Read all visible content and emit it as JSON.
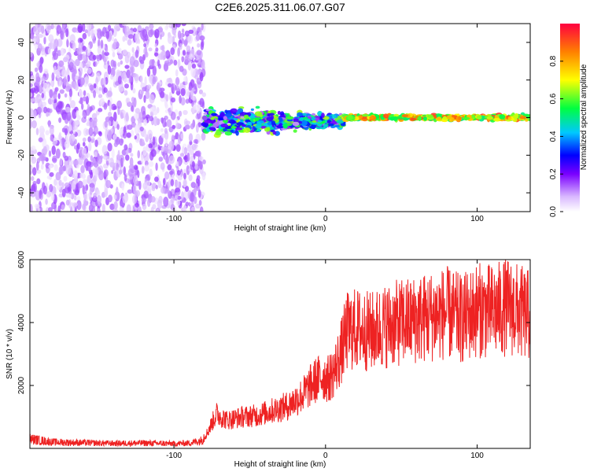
{
  "title": "C2E6.2025.311.06.07.G07",
  "colors": {
    "snr_line": "#ee2222",
    "frame": "#000000"
  },
  "chart_data": [
    {
      "type": "heatmap",
      "xlabel": "Height of straight line (km)",
      "ylabel": "Frequency (Hz)",
      "xlim": [
        -195,
        135
      ],
      "ylim": [
        -50,
        50
      ],
      "x_ticks": [
        -100,
        0,
        100
      ],
      "x_tick_labels": [
        "-100",
        "0",
        "100"
      ],
      "y_ticks": [
        -40,
        -20,
        0,
        20,
        40
      ],
      "y_tick_labels": [
        "-40",
        "-20",
        "0",
        "20",
        "40"
      ],
      "colorbar": {
        "label": "Normalized spectral amplitude",
        "range": [
          0,
          1
        ],
        "ticks": [
          0.0,
          0.2,
          0.4,
          0.6,
          0.8
        ],
        "tick_labels": [
          "0.0",
          "0.2",
          "0.4",
          "0.6",
          "0.8"
        ]
      },
      "regions": [
        {
          "x": [
            -195,
            -80
          ],
          "description_amplitude": 0.1,
          "freq_spread": 50
        },
        {
          "x": [
            -80,
            12
          ],
          "description_amplitude": 0.4,
          "freq_spread": 6
        },
        {
          "x": [
            12,
            135
          ],
          "description_amplitude": 0.9,
          "freq_spread": 1
        }
      ]
    },
    {
      "type": "line",
      "xlabel": "Height of straight line (km)",
      "ylabel": "SNR (10 * v/v)",
      "xlim": [
        -195,
        135
      ],
      "ylim": [
        0,
        6000
      ],
      "x_ticks": [
        -100,
        0,
        100
      ],
      "x_tick_labels": [
        "-100",
        "0",
        "100"
      ],
      "y_ticks": [
        2000,
        4000,
        6000
      ],
      "y_tick_labels": [
        "2000",
        "4000",
        "6000"
      ],
      "series": [
        {
          "name": "SNR",
          "x": [
            -195,
            -180,
            -160,
            -140,
            -120,
            -100,
            -90,
            -82,
            -78,
            -72,
            -65,
            -55,
            -45,
            -35,
            -25,
            -15,
            -8,
            -2,
            2,
            6,
            10,
            14,
            20,
            30,
            40,
            50,
            60,
            70,
            80,
            90,
            100,
            110,
            120,
            130,
            135
          ],
          "values": [
            300,
            200,
            180,
            160,
            170,
            150,
            170,
            250,
            500,
            1100,
            900,
            1000,
            1050,
            1200,
            1350,
            1700,
            2100,
            2300,
            2200,
            2500,
            3000,
            3700,
            3800,
            3700,
            3900,
            4000,
            4100,
            4200,
            4300,
            4100,
            4400,
            4350,
            4500,
            4300,
            4200
          ]
        }
      ]
    }
  ]
}
